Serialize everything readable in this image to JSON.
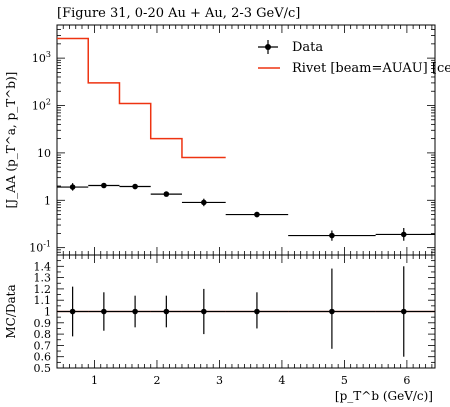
{
  "figure": {
    "title": "[Figure 31, 0-20 Au + Au, 2-3 GeV/c]",
    "ylabel_main": "[J_AA (p_T^a, p_T^b)]",
    "ylabel_ratio": "MC/Data",
    "xlabel": "[p_T^b (GeV/c)]"
  },
  "legend": {
    "position": "top-right",
    "data_label": "Data",
    "mc_label": "Rivet [beam=AUAU] [cen"
  },
  "colors": {
    "data": "#000000",
    "mc": "#ee3311"
  },
  "chart_data": [
    {
      "type": "line",
      "title": "[Figure 31, 0-20 Au + Au, 2-3 GeV/c]",
      "ylabel": "[J_AA (p_T^a, p_T^b)]",
      "xlim": [
        0.4,
        6.45
      ],
      "ylim": [
        0.07,
        5000
      ],
      "yscale": "log",
      "xticks": [
        1,
        2,
        3,
        4,
        5,
        6
      ],
      "yticks": [
        {
          "value": 0.1,
          "label": "10^-1"
        },
        {
          "value": 1,
          "label": "1"
        },
        {
          "value": 10,
          "label": "10"
        },
        {
          "value": 100,
          "label": "10^2"
        },
        {
          "value": 1000,
          "label": "10^3"
        }
      ],
      "series": [
        {
          "name": "Data",
          "style": "points-with-errors",
          "points": [
            {
              "x": 0.65,
              "xlo": 0.4,
              "xhi": 0.9,
              "y": 1.9,
              "ylo": 1.6,
              "yhi": 2.3
            },
            {
              "x": 1.15,
              "xlo": 0.9,
              "xhi": 1.4,
              "y": 2.05,
              "ylo": 1.85,
              "yhi": 2.3
            },
            {
              "x": 1.65,
              "xlo": 1.4,
              "xhi": 1.9,
              "y": 1.95,
              "ylo": 1.78,
              "yhi": 2.12
            },
            {
              "x": 2.15,
              "xlo": 1.9,
              "xhi": 2.4,
              "y": 1.35,
              "ylo": 1.2,
              "yhi": 1.5
            },
            {
              "x": 2.75,
              "xlo": 2.4,
              "xhi": 3.1,
              "y": 0.9,
              "ylo": 0.75,
              "yhi": 1.08
            },
            {
              "x": 3.6,
              "xlo": 3.1,
              "xhi": 4.1,
              "y": 0.5,
              "ylo": 0.44,
              "yhi": 0.57
            },
            {
              "x": 4.8,
              "xlo": 4.1,
              "xhi": 5.5,
              "y": 0.18,
              "ylo": 0.14,
              "yhi": 0.23
            },
            {
              "x": 5.95,
              "xlo": 5.5,
              "xhi": 6.45,
              "y": 0.19,
              "ylo": 0.14,
              "yhi": 0.26
            }
          ]
        },
        {
          "name": "Rivet [beam=AUAU] [cen",
          "style": "step-histogram",
          "edges": [
            0.4,
            0.9,
            1.4,
            1.9,
            2.4,
            3.1
          ],
          "values": [
            2600,
            300,
            110,
            20,
            8
          ]
        }
      ]
    },
    {
      "type": "scatter",
      "ylabel": "MC/Data",
      "xlabel": "[p_T^b (GeV/c)]",
      "xlim": [
        0.4,
        6.45
      ],
      "ylim": [
        0.5,
        1.5
      ],
      "xticks": [
        1,
        2,
        3,
        4,
        5,
        6
      ],
      "yticks": [
        0.5,
        0.6,
        0.7,
        0.8,
        0.9,
        1,
        1.1,
        1.2,
        1.3,
        1.4
      ],
      "reference_line": 1,
      "series": [
        {
          "name": "Data",
          "points": [
            {
              "x": 0.65,
              "xlo": 0.4,
              "xhi": 0.9,
              "y": 1,
              "ylo": 0.78,
              "yhi": 1.22
            },
            {
              "x": 1.15,
              "xlo": 0.9,
              "xhi": 1.4,
              "y": 1,
              "ylo": 0.83,
              "yhi": 1.17
            },
            {
              "x": 1.65,
              "xlo": 1.4,
              "xhi": 1.9,
              "y": 1,
              "ylo": 0.86,
              "yhi": 1.14
            },
            {
              "x": 2.15,
              "xlo": 1.9,
              "xhi": 2.4,
              "y": 1,
              "ylo": 0.86,
              "yhi": 1.14
            },
            {
              "x": 2.75,
              "xlo": 2.4,
              "xhi": 3.1,
              "y": 1,
              "ylo": 0.8,
              "yhi": 1.2
            },
            {
              "x": 3.6,
              "xlo": 3.1,
              "xhi": 4.1,
              "y": 1,
              "ylo": 0.85,
              "yhi": 1.17
            },
            {
              "x": 4.8,
              "xlo": 4.1,
              "xhi": 5.5,
              "y": 1,
              "ylo": 0.67,
              "yhi": 1.38
            },
            {
              "x": 5.95,
              "xlo": 5.5,
              "xhi": 6.45,
              "y": 1,
              "ylo": 0.6,
              "yhi": 1.4
            }
          ]
        }
      ]
    }
  ]
}
